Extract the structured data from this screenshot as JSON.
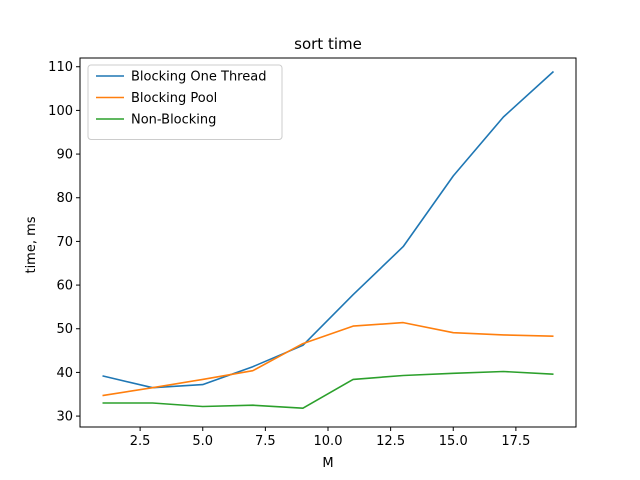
{
  "chart_data": {
    "type": "line",
    "title": "sort time",
    "xlabel": "M",
    "ylabel": "time, ms",
    "xlim": [
      0.1,
      19.9
    ],
    "ylim": [
      27.5,
      112
    ],
    "xticks": [
      2.5,
      5.0,
      7.5,
      10.0,
      12.5,
      15.0,
      17.5
    ],
    "xtick_labels": [
      "2.5",
      "5.0",
      "7.5",
      "10.0",
      "12.5",
      "15.0",
      "17.5"
    ],
    "yticks": [
      30,
      40,
      50,
      60,
      70,
      80,
      90,
      100,
      110
    ],
    "ytick_labels": [
      "30",
      "40",
      "50",
      "60",
      "70",
      "80",
      "90",
      "100",
      "110"
    ],
    "grid": false,
    "legend_position": "top-left",
    "x": [
      1,
      3,
      5,
      7,
      9,
      11,
      13,
      15,
      17,
      19
    ],
    "series": [
      {
        "name": "Blocking One Thread",
        "color": "#1f77b4",
        "values": [
          39.2,
          36.5,
          37.2,
          41.3,
          46.2,
          57.8,
          68.8,
          85.0,
          98.5,
          108.9
        ]
      },
      {
        "name": "Blocking Pool",
        "color": "#ff7f0e",
        "values": [
          34.7,
          36.5,
          38.4,
          40.4,
          46.6,
          50.6,
          51.4,
          49.1,
          48.6,
          48.3
        ]
      },
      {
        "name": "Non-Blocking",
        "color": "#2ca02c",
        "values": [
          33.0,
          33.0,
          32.2,
          32.5,
          31.8,
          38.4,
          39.3,
          39.8,
          40.2,
          39.6
        ]
      }
    ]
  }
}
